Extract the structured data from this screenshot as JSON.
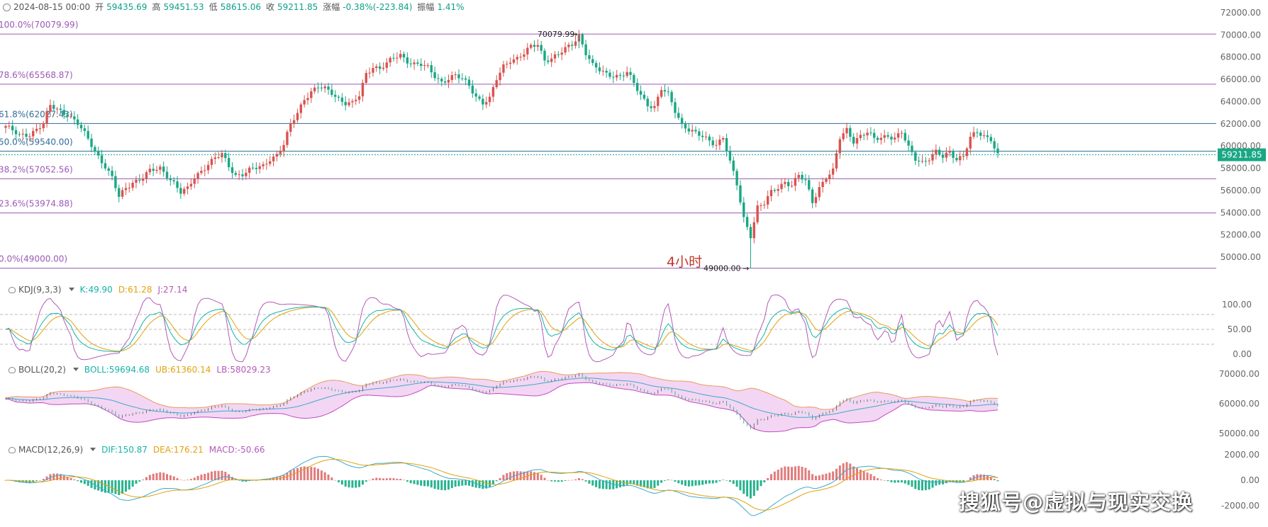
{
  "header": {
    "date": "2024-08-15 00:00",
    "open_label": "开",
    "open": "59435.69",
    "high_label": "高",
    "high": "59451.53",
    "low_label": "低",
    "low": "58615.06",
    "close_label": "收",
    "close": "59211.85",
    "change_label": "涨幅",
    "change": "-0.38%(-223.84)",
    "amp_label": "振幅",
    "amp": "1.41%"
  },
  "timeframe_label": "4小时",
  "watermark": "搜狐号@虚拟与现实交换",
  "colors": {
    "up": "#d9534f",
    "down": "#1aa784",
    "fib": "#9b59b6",
    "fib_mid": "#2f6b9a",
    "price_tag": "#1aa784"
  },
  "chart_data": [
    {
      "type": "candlestick",
      "title": "",
      "y_axis_ticks": [
        "72000.00",
        "70000.00",
        "68000.00",
        "66000.00",
        "64000.00",
        "62000.00",
        "60000.00",
        "58000.00",
        "56000.00",
        "54000.00",
        "52000.00",
        "50000.00"
      ],
      "ylim": [
        48000,
        72600
      ],
      "current_price": "59211.85",
      "high_annotation": "70079.99",
      "low_annotation": "49000.00",
      "fib_levels": [
        {
          "label": "100.0%(70079.99)",
          "value": 70079.99
        },
        {
          "label": "78.6%(65568.87)",
          "value": 65568.87
        },
        {
          "label": "61.8%(62027.43)",
          "value": 62027.43
        },
        {
          "label": "50.0%(59540.00)",
          "value": 59540.0
        },
        {
          "label": "38.2%(57052.56)",
          "value": 57052.56
        },
        {
          "label": "23.6%(53974.88)",
          "value": 53974.88
        },
        {
          "label": "0.0%(49000.00)",
          "value": 49000.0
        }
      ],
      "close_path": [
        [
          0,
          61800
        ],
        [
          4,
          60900
        ],
        [
          7,
          61100
        ],
        [
          11,
          62000
        ],
        [
          13,
          63600
        ],
        [
          15,
          63300
        ],
        [
          18,
          62900
        ],
        [
          21,
          62000
        ],
        [
          24,
          60600
        ],
        [
          27,
          59100
        ],
        [
          29,
          58200
        ],
        [
          31,
          57100
        ],
        [
          33,
          55400
        ],
        [
          35,
          56200
        ],
        [
          37,
          56800
        ],
        [
          39,
          57000
        ],
        [
          42,
          57700
        ],
        [
          45,
          58000
        ],
        [
          47,
          57400
        ],
        [
          49,
          56700
        ],
        [
          51,
          55800
        ],
        [
          53,
          56100
        ],
        [
          55,
          57200
        ],
        [
          57,
          57800
        ],
        [
          59,
          58400
        ],
        [
          61,
          58900
        ],
        [
          63,
          59200
        ],
        [
          65,
          58200
        ],
        [
          67,
          57400
        ],
        [
          69,
          57500
        ],
        [
          71,
          57800
        ],
        [
          73,
          58000
        ],
        [
          75,
          58200
        ],
        [
          77,
          58900
        ],
        [
          79,
          59200
        ],
        [
          81,
          60100
        ],
        [
          83,
          61900
        ],
        [
          85,
          63000
        ],
        [
          87,
          64300
        ],
        [
          89,
          64900
        ],
        [
          91,
          65300
        ],
        [
          93,
          65100
        ],
        [
          95,
          64800
        ],
        [
          97,
          64300
        ],
        [
          99,
          63900
        ],
        [
          101,
          63800
        ],
        [
          103,
          64500
        ],
        [
          105,
          66500
        ],
        [
          107,
          67200
        ],
        [
          109,
          67000
        ],
        [
          111,
          67400
        ],
        [
          113,
          67900
        ],
        [
          115,
          68200
        ],
        [
          117,
          67700
        ],
        [
          119,
          67400
        ],
        [
          121,
          67300
        ],
        [
          123,
          67000
        ],
        [
          125,
          66300
        ],
        [
          127,
          65800
        ],
        [
          129,
          66100
        ],
        [
          131,
          66300
        ],
        [
          133,
          66000
        ],
        [
          135,
          65500
        ],
        [
          137,
          64500
        ],
        [
          139,
          63900
        ],
        [
          141,
          64200
        ],
        [
          143,
          66000
        ],
        [
          145,
          67200
        ],
        [
          147,
          67800
        ],
        [
          149,
          67900
        ],
        [
          151,
          68300
        ],
        [
          153,
          68900
        ],
        [
          155,
          69200
        ],
        [
          157,
          67800
        ],
        [
          159,
          67900
        ],
        [
          161,
          68200
        ],
        [
          163,
          68700
        ],
        [
          165,
          69200
        ],
        [
          167,
          70000
        ],
        [
          169,
          68400
        ],
        [
          171,
          67200
        ],
        [
          173,
          66800
        ],
        [
          175,
          66500
        ],
        [
          177,
          66400
        ],
        [
          179,
          66300
        ],
        [
          181,
          66600
        ],
        [
          183,
          65600
        ],
        [
          185,
          64600
        ],
        [
          187,
          63800
        ],
        [
          189,
          63500
        ],
        [
          191,
          65100
        ],
        [
          193,
          64600
        ],
        [
          195,
          63200
        ],
        [
          197,
          62000
        ],
        [
          199,
          61500
        ],
        [
          201,
          61100
        ],
        [
          203,
          60800
        ],
        [
          205,
          60500
        ],
        [
          207,
          60200
        ],
        [
          209,
          60800
        ],
        [
          211,
          58500
        ],
        [
          213,
          56500
        ],
        [
          215,
          53500
        ],
        [
          217,
          52000
        ],
        [
          219,
          54500
        ],
        [
          221,
          54800
        ],
        [
          223,
          55800
        ],
        [
          225,
          56300
        ],
        [
          227,
          56800
        ],
        [
          229,
          56500
        ],
        [
          231,
          57300
        ],
        [
          233,
          56800
        ],
        [
          235,
          55000
        ],
        [
          237,
          56300
        ],
        [
          239,
          57200
        ],
        [
          241,
          57700
        ],
        [
          243,
          60700
        ],
        [
          245,
          61500
        ],
        [
          247,
          60500
        ],
        [
          249,
          60900
        ],
        [
          251,
          61200
        ],
        [
          253,
          60600
        ],
        [
          255,
          60800
        ],
        [
          257,
          61000
        ],
        [
          259,
          60700
        ],
        [
          261,
          61200
        ],
        [
          263,
          59800
        ],
        [
          265,
          58900
        ],
        [
          267,
          58600
        ],
        [
          269,
          58900
        ],
        [
          271,
          59400
        ],
        [
          273,
          59000
        ],
        [
          275,
          59500
        ],
        [
          277,
          58900
        ],
        [
          279,
          59100
        ],
        [
          281,
          60700
        ],
        [
          283,
          61200
        ],
        [
          285,
          60900
        ],
        [
          287,
          60700
        ],
        [
          289,
          59200
        ]
      ],
      "indicators": [
        {
          "name": "KDJ(9,3,3)",
          "label": "KDJ(9,3,3)",
          "K": "K:49.90",
          "D": "D:61.28",
          "J": "J:27.14",
          "ticks": [
            "100.00",
            "50.00",
            "0.00"
          ]
        },
        {
          "name": "BOLL(20,2)",
          "label": "BOLL(20,2)",
          "BOLL": "BOLL:59694.68",
          "UB": "UB:61360.14",
          "LB": "LB:58029.23",
          "ticks": [
            "70000.00",
            "60000.00",
            "50000.00"
          ]
        },
        {
          "name": "MACD(12,26,9)",
          "label": "MACD(12,26,9)",
          "DIF": "DIF:150.87",
          "DEA": "DEA:176.21",
          "MACD": "MACD:-50.66",
          "ticks": [
            "2000.00",
            "0.00",
            "-2000.00"
          ]
        }
      ]
    }
  ]
}
